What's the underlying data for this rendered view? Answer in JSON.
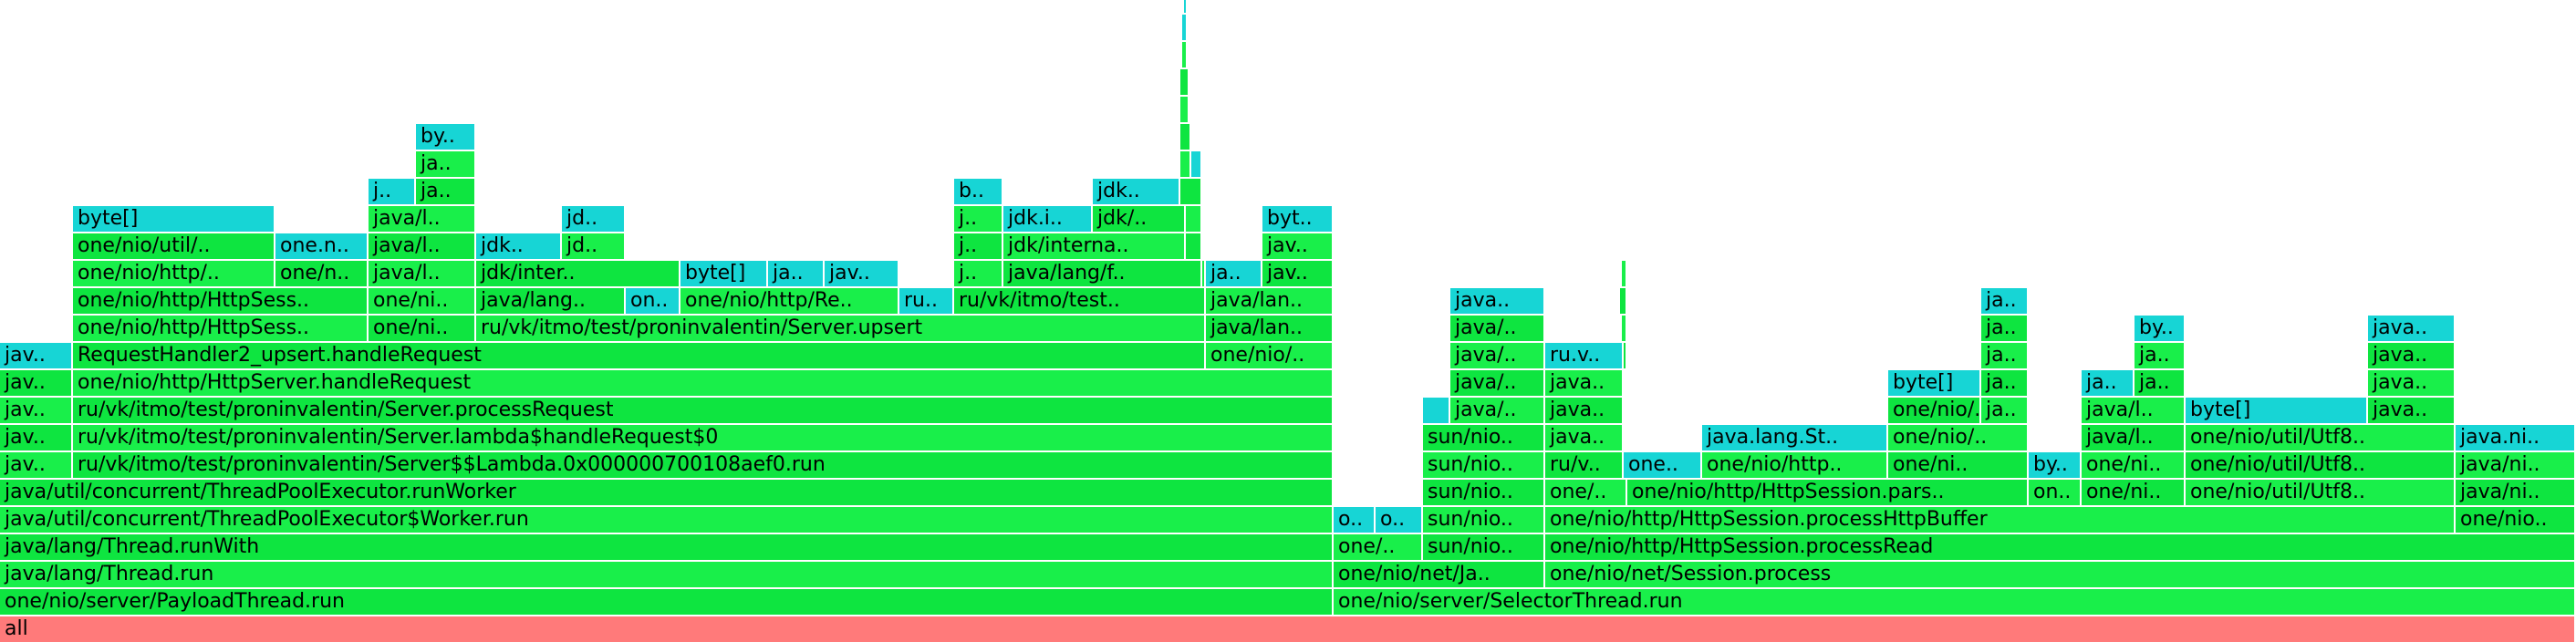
{
  "colors": {
    "root": "#ff7a7a",
    "java": "#0ee540",
    "java_alt": "#19ef4a",
    "alloc": "#17d5d5"
  },
  "chart_data": {
    "type": "flamegraph",
    "frames": [
      {
        "label": "all",
        "depth": 0,
        "start": 0,
        "end": 2824,
        "kind": "root"
      },
      {
        "label": "one/nio/server/PayloadThread.run",
        "depth": 1,
        "start": 0,
        "end": 1462,
        "kind": "java"
      },
      {
        "label": "one/nio/server/SelectorThread.run",
        "depth": 1,
        "start": 1462,
        "end": 2824,
        "kind": "java_alt"
      },
      {
        "label": "java/lang/Thread.run",
        "depth": 2,
        "start": 0,
        "end": 1462,
        "kind": "java_alt"
      },
      {
        "label": "one/nio/net/Ja..",
        "depth": 2,
        "start": 1462,
        "end": 1694,
        "kind": "java"
      },
      {
        "label": "one/nio/net/Session.process",
        "depth": 2,
        "start": 1694,
        "end": 2824,
        "kind": "java_alt"
      },
      {
        "label": "java/lang/Thread.runWith",
        "depth": 3,
        "start": 0,
        "end": 1462,
        "kind": "java"
      },
      {
        "label": "one/..",
        "depth": 3,
        "start": 1462,
        "end": 1560,
        "kind": "java_alt"
      },
      {
        "label": "sun/nio..",
        "depth": 3,
        "start": 1560,
        "end": 1694,
        "kind": "java"
      },
      {
        "label": "one/nio/http/HttpSession.processRead",
        "depth": 3,
        "start": 1694,
        "end": 2824,
        "kind": "java"
      },
      {
        "label": "java/util/concurrent/ThreadPoolExecutor$Worker.run",
        "depth": 4,
        "start": 0,
        "end": 1462,
        "kind": "java_alt"
      },
      {
        "label": "o..",
        "depth": 4,
        "start": 1462,
        "end": 1508,
        "kind": "alloc"
      },
      {
        "label": "o..",
        "depth": 4,
        "start": 1508,
        "end": 1560,
        "kind": "alloc"
      },
      {
        "label": "sun/nio..",
        "depth": 4,
        "start": 1560,
        "end": 1694,
        "kind": "java_alt"
      },
      {
        "label": "one/nio/http/HttpSession.processHttpBuffer",
        "depth": 4,
        "start": 1694,
        "end": 2692,
        "kind": "java_alt"
      },
      {
        "label": "one/nio..",
        "depth": 4,
        "start": 2692,
        "end": 2824,
        "kind": "java"
      },
      {
        "label": "java/util/concurrent/ThreadPoolExecutor.runWorker",
        "depth": 5,
        "start": 0,
        "end": 1462,
        "kind": "java"
      },
      {
        "label": "sun/nio..",
        "depth": 5,
        "start": 1560,
        "end": 1694,
        "kind": "java"
      },
      {
        "label": "one/..",
        "depth": 5,
        "start": 1694,
        "end": 1784,
        "kind": "java_alt"
      },
      {
        "label": "one/nio/http/HttpSession.pars..",
        "depth": 5,
        "start": 1784,
        "end": 2224,
        "kind": "java"
      },
      {
        "label": "on..",
        "depth": 5,
        "start": 2224,
        "end": 2282,
        "kind": "java_alt"
      },
      {
        "label": "one/ni..",
        "depth": 5,
        "start": 2282,
        "end": 2396,
        "kind": "java"
      },
      {
        "label": "one/nio/util/Utf8..",
        "depth": 5,
        "start": 2396,
        "end": 2692,
        "kind": "java_alt"
      },
      {
        "label": "java/ni..",
        "depth": 5,
        "start": 2692,
        "end": 2824,
        "kind": "java"
      },
      {
        "label": "jav..",
        "depth": 6,
        "start": 0,
        "end": 80,
        "kind": "java_alt"
      },
      {
        "label": "ru/vk/itmo/test/proninvalentin/Server$$Lambda.0x000000700108aef0.run",
        "depth": 6,
        "start": 80,
        "end": 1462,
        "kind": "java"
      },
      {
        "label": "sun/nio..",
        "depth": 6,
        "start": 1560,
        "end": 1694,
        "kind": "java_alt"
      },
      {
        "label": "ru/v..",
        "depth": 6,
        "start": 1694,
        "end": 1780,
        "kind": "java"
      },
      {
        "label": "one..",
        "depth": 6,
        "start": 1780,
        "end": 1866,
        "kind": "alloc"
      },
      {
        "label": "one/nio/http..",
        "depth": 6,
        "start": 1866,
        "end": 2070,
        "kind": "java_alt"
      },
      {
        "label": "one/ni..",
        "depth": 6,
        "start": 2070,
        "end": 2224,
        "kind": "java"
      },
      {
        "label": "by..",
        "depth": 6,
        "start": 2224,
        "end": 2282,
        "kind": "alloc"
      },
      {
        "label": "one/ni..",
        "depth": 6,
        "start": 2282,
        "end": 2396,
        "kind": "java_alt"
      },
      {
        "label": "one/nio/util/Utf8..",
        "depth": 6,
        "start": 2396,
        "end": 2692,
        "kind": "java"
      },
      {
        "label": "java/ni..",
        "depth": 6,
        "start": 2692,
        "end": 2824,
        "kind": "java_alt"
      },
      {
        "label": "jav..",
        "depth": 7,
        "start": 0,
        "end": 80,
        "kind": "java"
      },
      {
        "label": "ru/vk/itmo/test/proninvalentin/Server.lambda$handleRequest$0",
        "depth": 7,
        "start": 80,
        "end": 1462,
        "kind": "java_alt"
      },
      {
        "label": "sun/nio..",
        "depth": 7,
        "start": 1560,
        "end": 1694,
        "kind": "java"
      },
      {
        "label": "java..",
        "depth": 7,
        "start": 1694,
        "end": 1780,
        "kind": "java_alt"
      },
      {
        "label": "java.lang.St..",
        "depth": 7,
        "start": 1866,
        "end": 2070,
        "kind": "alloc"
      },
      {
        "label": "one/nio/..",
        "depth": 7,
        "start": 2070,
        "end": 2224,
        "kind": "java_alt"
      },
      {
        "label": "java/l..",
        "depth": 7,
        "start": 2282,
        "end": 2396,
        "kind": "java"
      },
      {
        "label": "one/nio/util/Utf8..",
        "depth": 7,
        "start": 2396,
        "end": 2692,
        "kind": "java_alt"
      },
      {
        "label": "java.ni..",
        "depth": 7,
        "start": 2692,
        "end": 2824,
        "kind": "alloc"
      },
      {
        "label": "jav..",
        "depth": 8,
        "start": 0,
        "end": 80,
        "kind": "java_alt"
      },
      {
        "label": "ru/vk/itmo/test/proninvalentin/Server.processRequest",
        "depth": 8,
        "start": 80,
        "end": 1462,
        "kind": "java"
      },
      {
        "label": "",
        "depth": 8,
        "start": 1560,
        "end": 1590,
        "kind": "alloc"
      },
      {
        "label": "java/..",
        "depth": 8,
        "start": 1590,
        "end": 1694,
        "kind": "java_alt"
      },
      {
        "label": "java..",
        "depth": 8,
        "start": 1694,
        "end": 1780,
        "kind": "java"
      },
      {
        "label": "one/nio/..",
        "depth": 8,
        "start": 2070,
        "end": 2172,
        "kind": "java"
      },
      {
        "label": "ja..",
        "depth": 8,
        "start": 2172,
        "end": 2224,
        "kind": "java_alt"
      },
      {
        "label": "java/l..",
        "depth": 8,
        "start": 2282,
        "end": 2396,
        "kind": "java_alt"
      },
      {
        "label": "byte[]",
        "depth": 8,
        "start": 2396,
        "end": 2596,
        "kind": "alloc"
      },
      {
        "label": "java..",
        "depth": 8,
        "start": 2596,
        "end": 2692,
        "kind": "java"
      },
      {
        "label": "jav..",
        "depth": 9,
        "start": 0,
        "end": 80,
        "kind": "java"
      },
      {
        "label": "one/nio/http/HttpServer.handleRequest",
        "depth": 9,
        "start": 80,
        "end": 1462,
        "kind": "java_alt"
      },
      {
        "label": "java/..",
        "depth": 9,
        "start": 1590,
        "end": 1694,
        "kind": "java"
      },
      {
        "label": "java..",
        "depth": 9,
        "start": 1694,
        "end": 1780,
        "kind": "java_alt"
      },
      {
        "label": "byte[]",
        "depth": 9,
        "start": 2070,
        "end": 2172,
        "kind": "alloc"
      },
      {
        "label": "ja..",
        "depth": 9,
        "start": 2172,
        "end": 2224,
        "kind": "java"
      },
      {
        "label": "ja..",
        "depth": 9,
        "start": 2282,
        "end": 2340,
        "kind": "alloc"
      },
      {
        "label": "ja..",
        "depth": 9,
        "start": 2340,
        "end": 2396,
        "kind": "java"
      },
      {
        "label": "java..",
        "depth": 9,
        "start": 2596,
        "end": 2692,
        "kind": "java_alt"
      },
      {
        "label": "jav..",
        "depth": 10,
        "start": 0,
        "end": 80,
        "kind": "alloc"
      },
      {
        "label": "RequestHandler2_upsert.handleRequest",
        "depth": 10,
        "start": 80,
        "end": 1322,
        "kind": "java"
      },
      {
        "label": "one/nio/..",
        "depth": 10,
        "start": 1322,
        "end": 1462,
        "kind": "java_alt"
      },
      {
        "label": "java/..",
        "depth": 10,
        "start": 1590,
        "end": 1694,
        "kind": "java_alt"
      },
      {
        "label": "ru.v..",
        "depth": 10,
        "start": 1694,
        "end": 1780,
        "kind": "alloc"
      },
      {
        "label": "",
        "depth": 10,
        "start": 1780,
        "end": 1784,
        "kind": "java"
      },
      {
        "label": "ja..",
        "depth": 10,
        "start": 2172,
        "end": 2224,
        "kind": "java_alt"
      },
      {
        "label": "ja..",
        "depth": 10,
        "start": 2340,
        "end": 2396,
        "kind": "java_alt"
      },
      {
        "label": "java..",
        "depth": 10,
        "start": 2596,
        "end": 2692,
        "kind": "java"
      },
      {
        "label": "one/nio/http/HttpSess..",
        "depth": 11,
        "start": 80,
        "end": 404,
        "kind": "java_alt"
      },
      {
        "label": "one/ni..",
        "depth": 11,
        "start": 404,
        "end": 522,
        "kind": "java"
      },
      {
        "label": "ru/vk/itmo/test/proninvalentin/Server.upsert",
        "depth": 11,
        "start": 522,
        "end": 1322,
        "kind": "java_alt"
      },
      {
        "label": "java/lan..",
        "depth": 11,
        "start": 1322,
        "end": 1462,
        "kind": "java"
      },
      {
        "label": "java/..",
        "depth": 11,
        "start": 1590,
        "end": 1694,
        "kind": "java"
      },
      {
        "label": "",
        "depth": 11,
        "start": 1778,
        "end": 1784,
        "kind": "java_alt"
      },
      {
        "label": "ja..",
        "depth": 11,
        "start": 2172,
        "end": 2224,
        "kind": "java"
      },
      {
        "label": "by..",
        "depth": 11,
        "start": 2340,
        "end": 2396,
        "kind": "alloc"
      },
      {
        "label": "java..",
        "depth": 11,
        "start": 2596,
        "end": 2692,
        "kind": "alloc"
      },
      {
        "label": "one/nio/http/HttpSess..",
        "depth": 12,
        "start": 80,
        "end": 404,
        "kind": "java"
      },
      {
        "label": "one/ni..",
        "depth": 12,
        "start": 404,
        "end": 522,
        "kind": "java_alt"
      },
      {
        "label": "java/lang..",
        "depth": 12,
        "start": 522,
        "end": 686,
        "kind": "java"
      },
      {
        "label": "on..",
        "depth": 12,
        "start": 686,
        "end": 746,
        "kind": "alloc"
      },
      {
        "label": "one/nio/http/Re..",
        "depth": 12,
        "start": 746,
        "end": 986,
        "kind": "java_alt"
      },
      {
        "label": "ru..",
        "depth": 12,
        "start": 986,
        "end": 1046,
        "kind": "alloc"
      },
      {
        "label": "ru/vk/itmo/test..",
        "depth": 12,
        "start": 1046,
        "end": 1322,
        "kind": "java"
      },
      {
        "label": "java/lan..",
        "depth": 12,
        "start": 1322,
        "end": 1462,
        "kind": "java_alt"
      },
      {
        "label": "java..",
        "depth": 12,
        "start": 1590,
        "end": 1694,
        "kind": "alloc"
      },
      {
        "label": "",
        "depth": 12,
        "start": 1776,
        "end": 1784,
        "kind": "java"
      },
      {
        "label": "ja..",
        "depth": 12,
        "start": 2172,
        "end": 2224,
        "kind": "alloc"
      },
      {
        "label": "one/nio/http/..",
        "depth": 13,
        "start": 80,
        "end": 302,
        "kind": "java_alt"
      },
      {
        "label": "one/n..",
        "depth": 13,
        "start": 302,
        "end": 404,
        "kind": "java"
      },
      {
        "label": "java/l..",
        "depth": 13,
        "start": 404,
        "end": 522,
        "kind": "java_alt"
      },
      {
        "label": "jdk/inter..",
        "depth": 13,
        "start": 522,
        "end": 746,
        "kind": "java"
      },
      {
        "label": "byte[]",
        "depth": 13,
        "start": 746,
        "end": 842,
        "kind": "alloc"
      },
      {
        "label": "ja..",
        "depth": 13,
        "start": 842,
        "end": 904,
        "kind": "alloc"
      },
      {
        "label": "jav..",
        "depth": 13,
        "start": 904,
        "end": 986,
        "kind": "alloc"
      },
      {
        "label": "j..",
        "depth": 13,
        "start": 1046,
        "end": 1100,
        "kind": "java_alt"
      },
      {
        "label": "java/lang/f..",
        "depth": 13,
        "start": 1100,
        "end": 1318,
        "kind": "java"
      },
      {
        "label": "",
        "depth": 13,
        "start": 1318,
        "end": 1322,
        "kind": "java_alt"
      },
      {
        "label": "ja..",
        "depth": 13,
        "start": 1322,
        "end": 1384,
        "kind": "alloc"
      },
      {
        "label": "jav..",
        "depth": 13,
        "start": 1384,
        "end": 1462,
        "kind": "java"
      },
      {
        "label": "",
        "depth": 13,
        "start": 1778,
        "end": 1784,
        "kind": "java_alt"
      },
      {
        "label": "one/nio/util/..",
        "depth": 14,
        "start": 80,
        "end": 302,
        "kind": "java"
      },
      {
        "label": "one.n..",
        "depth": 14,
        "start": 302,
        "end": 404,
        "kind": "alloc"
      },
      {
        "label": "java/l..",
        "depth": 14,
        "start": 404,
        "end": 522,
        "kind": "java"
      },
      {
        "label": "jdk..",
        "depth": 14,
        "start": 522,
        "end": 616,
        "kind": "alloc"
      },
      {
        "label": "jd..",
        "depth": 14,
        "start": 616,
        "end": 686,
        "kind": "java_alt"
      },
      {
        "label": "j..",
        "depth": 14,
        "start": 1046,
        "end": 1100,
        "kind": "java"
      },
      {
        "label": "jdk/interna..",
        "depth": 14,
        "start": 1100,
        "end": 1300,
        "kind": "java_alt"
      },
      {
        "label": "",
        "depth": 14,
        "start": 1300,
        "end": 1318,
        "kind": "java"
      },
      {
        "label": "jav..",
        "depth": 14,
        "start": 1384,
        "end": 1462,
        "kind": "java_alt"
      },
      {
        "label": "byte[]",
        "depth": 15,
        "start": 80,
        "end": 302,
        "kind": "alloc"
      },
      {
        "label": "java/l..",
        "depth": 15,
        "start": 404,
        "end": 522,
        "kind": "java_alt"
      },
      {
        "label": "jd..",
        "depth": 15,
        "start": 616,
        "end": 686,
        "kind": "alloc"
      },
      {
        "label": "j..",
        "depth": 15,
        "start": 1046,
        "end": 1100,
        "kind": "java_alt"
      },
      {
        "label": "jdk.i..",
        "depth": 15,
        "start": 1100,
        "end": 1198,
        "kind": "alloc"
      },
      {
        "label": "jdk/..",
        "depth": 15,
        "start": 1198,
        "end": 1300,
        "kind": "java"
      },
      {
        "label": "",
        "depth": 15,
        "start": 1300,
        "end": 1318,
        "kind": "java_alt"
      },
      {
        "label": "byt..",
        "depth": 15,
        "start": 1384,
        "end": 1462,
        "kind": "alloc"
      },
      {
        "label": "j..",
        "depth": 16,
        "start": 404,
        "end": 456,
        "kind": "alloc"
      },
      {
        "label": "ja..",
        "depth": 16,
        "start": 456,
        "end": 522,
        "kind": "java"
      },
      {
        "label": "b..",
        "depth": 16,
        "start": 1046,
        "end": 1100,
        "kind": "alloc"
      },
      {
        "label": "jdk..",
        "depth": 16,
        "start": 1198,
        "end": 1294,
        "kind": "alloc"
      },
      {
        "label": "",
        "depth": 16,
        "start": 1294,
        "end": 1318,
        "kind": "java"
      },
      {
        "label": "ja..",
        "depth": 17,
        "start": 456,
        "end": 522,
        "kind": "java_alt"
      },
      {
        "label": "",
        "depth": 17,
        "start": 1294,
        "end": 1306,
        "kind": "java_alt"
      },
      {
        "label": "",
        "depth": 17,
        "start": 1306,
        "end": 1318,
        "kind": "alloc"
      },
      {
        "label": "by..",
        "depth": 18,
        "start": 456,
        "end": 522,
        "kind": "alloc"
      },
      {
        "label": "",
        "depth": 18,
        "start": 1294,
        "end": 1306,
        "kind": "java"
      },
      {
        "label": "",
        "depth": 19,
        "start": 1294,
        "end": 1304,
        "kind": "java_alt"
      },
      {
        "label": "",
        "depth": 20,
        "start": 1294,
        "end": 1304,
        "kind": "java"
      },
      {
        "label": "",
        "depth": 21,
        "start": 1296,
        "end": 1302,
        "kind": "java_alt"
      },
      {
        "label": "",
        "depth": 22,
        "start": 1296,
        "end": 1302,
        "kind": "alloc"
      },
      {
        "label": "",
        "depth": 23,
        "start": 1298,
        "end": 1302,
        "kind": "alloc"
      }
    ]
  }
}
